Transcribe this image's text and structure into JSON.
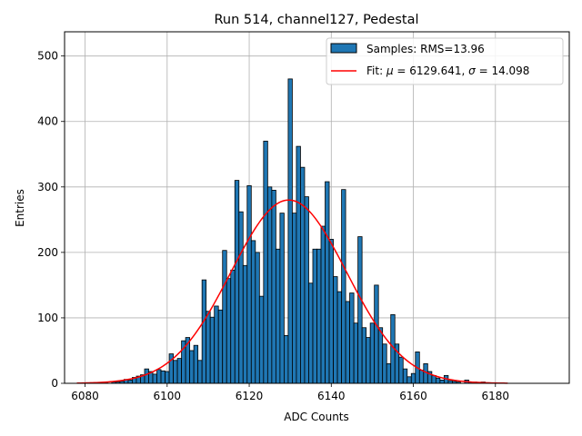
{
  "chart_data": {
    "type": "bar",
    "title": "Run 514, channel127, Pedestal",
    "xlabel": "ADC Counts",
    "ylabel": "Entries",
    "xlim": [
      6075,
      6198
    ],
    "ylim": [
      0,
      537
    ],
    "xticks": [
      6080,
      6100,
      6120,
      6140,
      6160,
      6180
    ],
    "yticks": [
      0,
      100,
      200,
      300,
      400,
      500
    ],
    "grid": true,
    "legend_position": "top-right",
    "colors": {
      "bar": "#1f77b4",
      "bar_edge": "#000000",
      "fit": "#ff0000",
      "grid": "#b0b0b0"
    },
    "series": [
      {
        "name": "Samples: RMS=13.96",
        "type": "histogram",
        "bin_width": 1,
        "x": [
          6084,
          6085,
          6086,
          6087,
          6088,
          6089,
          6090,
          6091,
          6092,
          6093,
          6094,
          6095,
          6096,
          6097,
          6098,
          6099,
          6100,
          6101,
          6102,
          6103,
          6104,
          6105,
          6106,
          6107,
          6108,
          6109,
          6110,
          6111,
          6112,
          6113,
          6114,
          6115,
          6116,
          6117,
          6118,
          6119,
          6120,
          6121,
          6122,
          6123,
          6124,
          6125,
          6126,
          6127,
          6128,
          6129,
          6130,
          6131,
          6132,
          6133,
          6134,
          6135,
          6136,
          6137,
          6138,
          6139,
          6140,
          6141,
          6142,
          6143,
          6144,
          6145,
          6146,
          6147,
          6148,
          6149,
          6150,
          6151,
          6152,
          6153,
          6154,
          6155,
          6156,
          6157,
          6158,
          6159,
          6160,
          6161,
          6162,
          6163,
          6164,
          6165,
          6166,
          6167,
          6168,
          6169,
          6170,
          6171,
          6172,
          6173,
          6174,
          6175,
          6176,
          6177,
          6178,
          6179,
          6180,
          6181,
          6182,
          6183,
          6184,
          6185,
          6186,
          6187,
          6188,
          6189,
          6190,
          6191,
          6192,
          6193,
          6194
        ],
        "values": [
          0,
          1,
          0,
          2,
          2,
          3,
          6,
          5,
          9,
          11,
          13,
          22,
          18,
          14,
          21,
          19,
          18,
          45,
          35,
          38,
          65,
          70,
          50,
          58,
          35,
          158,
          110,
          101,
          118,
          112,
          203,
          160,
          173,
          310,
          262,
          180,
          302,
          218,
          200,
          133,
          370,
          300,
          295,
          205,
          260,
          73,
          465,
          260,
          362,
          330,
          285,
          153,
          205,
          205,
          240,
          308,
          220,
          163,
          140,
          296,
          125,
          138,
          92,
          224,
          85,
          70,
          92,
          150,
          85,
          60,
          30,
          105,
          60,
          40,
          22,
          10,
          15,
          48,
          20,
          30,
          18,
          12,
          8,
          5,
          12,
          4,
          3,
          2,
          0,
          5,
          2,
          2,
          1,
          2,
          1,
          0,
          0,
          0,
          0,
          0,
          0,
          0,
          0,
          0,
          0,
          0,
          0,
          0,
          0,
          0,
          0
        ]
      },
      {
        "name": "Fit: μ = 6129.641, σ = 14.098",
        "type": "gaussian_fit",
        "mu": 6129.641,
        "sigma": 14.098,
        "amplitude": 280,
        "x_range": [
          6078,
          6183
        ]
      }
    ]
  },
  "legend": {
    "samples_label": "Samples: RMS=13.96",
    "fit_prefix": "Fit: ",
    "fit_mu_symbol": "μ",
    "fit_mu_value": " = 6129.641, ",
    "fit_sigma_symbol": "σ",
    "fit_sigma_value": " = 14.098"
  }
}
